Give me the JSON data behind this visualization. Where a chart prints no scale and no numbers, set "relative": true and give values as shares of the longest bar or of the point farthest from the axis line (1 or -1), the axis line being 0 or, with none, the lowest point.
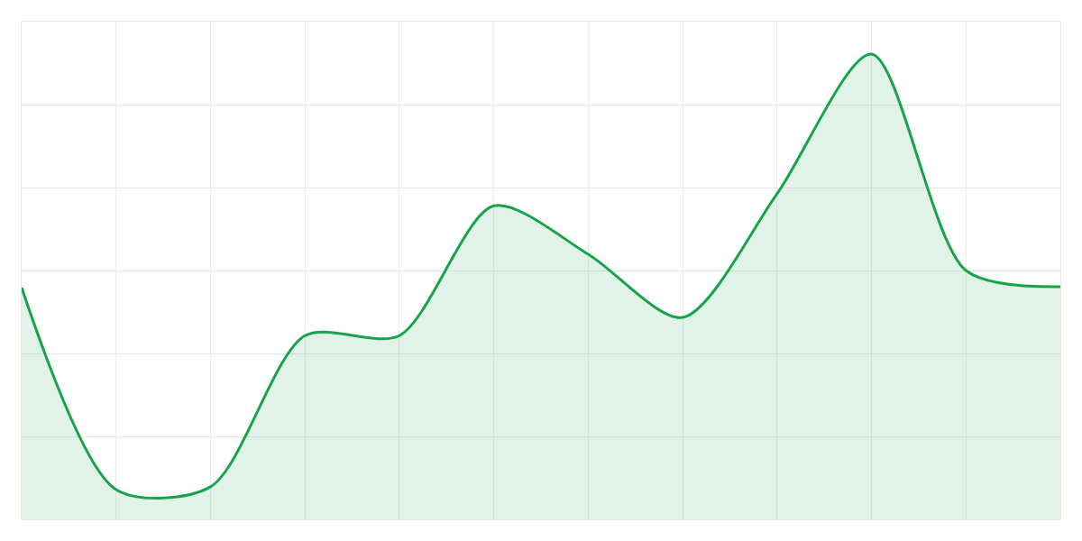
{
  "chart_data": {
    "type": "area",
    "relative": true,
    "categories": [
      null,
      null,
      null,
      null,
      null,
      null,
      null,
      null,
      null,
      null,
      null,
      null
    ],
    "series": [
      {
        "color": "#16a34a",
        "values": [
          0.498,
          0.064,
          0.07,
          0.395,
          0.395,
          0.674,
          0.57,
          0.434,
          0.7,
          1,
          0.535,
          0.5
        ]
      }
    ],
    "grid": true,
    "marker": "none",
    "line_style": "solid"
  }
}
